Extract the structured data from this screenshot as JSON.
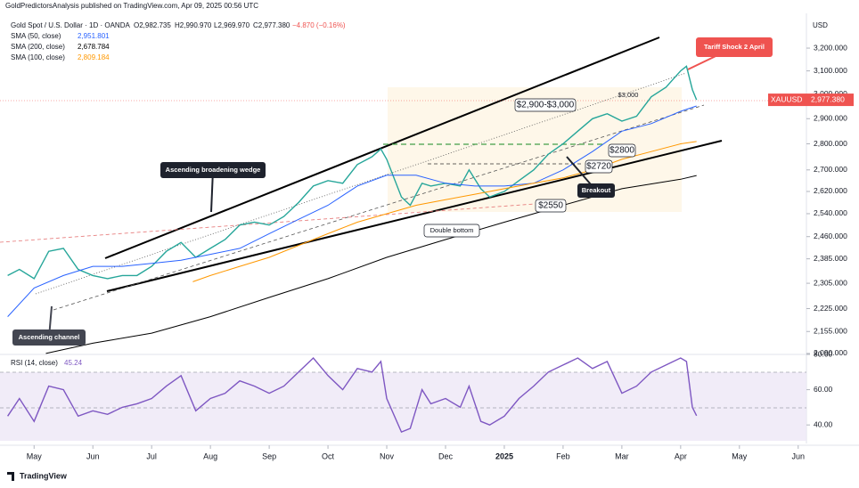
{
  "header": {
    "publisher": "GoldPredictorsAnalysis published on TradingView.com, Apr 09, 2025 00:56 UTC",
    "symbol": "Gold Spot / U.S. Dollar · 1D · OANDA",
    "open": "O2,982.735",
    "high": "H2,990.970",
    "low": "L2,969.970",
    "close": "C2,977.380",
    "change": "−4.870 (−0.16%)"
  },
  "chart_data": [
    {
      "type": "line",
      "log_scale": true,
      "axis_title": "USD",
      "xlim": [
        4.42,
        18.14
      ],
      "ylim": [
        2082,
        3359
      ],
      "xticks": [
        {
          "value": 5,
          "label": "May"
        },
        {
          "value": 6,
          "label": "Jun"
        },
        {
          "value": 7,
          "label": "Jul"
        },
        {
          "value": 8,
          "label": "Aug"
        },
        {
          "value": 9,
          "label": "Sep"
        },
        {
          "value": 10,
          "label": "Oct"
        },
        {
          "value": 11,
          "label": "Nov"
        },
        {
          "value": 12,
          "label": "Dec"
        },
        {
          "value": 13,
          "label": "2025"
        },
        {
          "value": 14,
          "label": "Feb"
        },
        {
          "value": 15,
          "label": "Mar"
        },
        {
          "value": 16,
          "label": "Apr"
        },
        {
          "value": 17,
          "label": "May"
        },
        {
          "value": 18,
          "label": "Jun"
        }
      ],
      "yticks": [
        {
          "value": 3200,
          "label": "3,200.000"
        },
        {
          "value": 3100,
          "label": "3,100.000"
        },
        {
          "value": 3000,
          "label": "3,000.000"
        },
        {
          "value": 2900,
          "label": "2,900.000"
        },
        {
          "value": 2800,
          "label": "2,800.000"
        },
        {
          "value": 2700,
          "label": "2,700.000"
        },
        {
          "value": 2620,
          "label": "2,620.000"
        },
        {
          "value": 2540,
          "label": "2,540.000"
        },
        {
          "value": 2460,
          "label": "2,460.000"
        },
        {
          "value": 2385,
          "label": "2,385.000"
        },
        {
          "value": 2305,
          "label": "2,305.000"
        },
        {
          "value": 2225,
          "label": "2,225.000"
        },
        {
          "value": 2155,
          "label": "2,155.000"
        },
        {
          "value": 2090,
          "label": "2,090.000"
        }
      ],
      "series": [
        {
          "name": "XAUUSD",
          "color": "#26a69a",
          "last_label": "2,977.380",
          "x": [
            4.55,
            4.75,
            5,
            5.25,
            5.5,
            5.75,
            6,
            6.25,
            6.5,
            6.75,
            7,
            7.25,
            7.5,
            7.75,
            8,
            8.25,
            8.5,
            8.75,
            9,
            9.25,
            9.5,
            9.75,
            10,
            10.25,
            10.5,
            10.75,
            10.9,
            11,
            11.25,
            11.4,
            11.6,
            11.75,
            12,
            12.25,
            12.4,
            12.6,
            12.75,
            13,
            13.25,
            13.5,
            13.75,
            14,
            14.25,
            14.5,
            14.75,
            15,
            15.25,
            15.5,
            15.75,
            16,
            16.1,
            16.2,
            16.27
          ],
          "values": [
            2330,
            2350,
            2320,
            2410,
            2420,
            2350,
            2330,
            2320,
            2330,
            2330,
            2360,
            2410,
            2440,
            2390,
            2420,
            2450,
            2500,
            2510,
            2500,
            2530,
            2580,
            2640,
            2660,
            2650,
            2720,
            2750,
            2780,
            2740,
            2600,
            2570,
            2650,
            2640,
            2650,
            2640,
            2700,
            2630,
            2600,
            2620,
            2660,
            2700,
            2760,
            2800,
            2850,
            2900,
            2920,
            2890,
            2910,
            2990,
            3030,
            3100,
            3120,
            3020,
            2977.38
          ]
        },
        {
          "name": "SMA (50, close)",
          "color": "#2962ff",
          "last_label": "2,951.801",
          "x": [
            4.55,
            5,
            5.5,
            6,
            6.5,
            7,
            7.5,
            8,
            8.5,
            9,
            9.5,
            10,
            10.5,
            11,
            11.5,
            12,
            12.5,
            13,
            13.5,
            14,
            14.5,
            15,
            15.5,
            16,
            16.27
          ],
          "values": [
            2200,
            2290,
            2330,
            2360,
            2360,
            2370,
            2380,
            2400,
            2420,
            2470,
            2520,
            2570,
            2640,
            2680,
            2680,
            2650,
            2640,
            2640,
            2650,
            2700,
            2770,
            2850,
            2880,
            2930,
            2951.801
          ]
        },
        {
          "name": "SMA (200, close)",
          "color": "#000000",
          "last_label": "2,678.784",
          "x": [
            5.2,
            6,
            7,
            8,
            9,
            10,
            11,
            12,
            13,
            14,
            15,
            16,
            16.27
          ],
          "values": [
            2090,
            2120,
            2150,
            2200,
            2260,
            2320,
            2390,
            2450,
            2510,
            2570,
            2630,
            2665,
            2678.784
          ]
        },
        {
          "name": "SMA (100, close)",
          "color": "#ff9800",
          "last_label": "2,809.184",
          "x": [
            7.7,
            8,
            8.5,
            9,
            9.5,
            10,
            10.5,
            11,
            11.5,
            12,
            12.5,
            13,
            13.5,
            14,
            14.5,
            15,
            15.5,
            16,
            16.27
          ],
          "values": [
            2310,
            2330,
            2360,
            2390,
            2430,
            2470,
            2510,
            2540,
            2570,
            2590,
            2610,
            2630,
            2650,
            2670,
            2700,
            2740,
            2770,
            2800,
            2809.184
          ]
        }
      ],
      "annotations": [
        "Ascending broadening wedge",
        "Ascending channel",
        "Double bottom",
        "Breakout",
        "Tariff Shock 2 April",
        "$2,900-$3,000",
        "$3,000",
        "$2800",
        "$2720",
        "$2550"
      ]
    },
    {
      "type": "line",
      "log_scale": false,
      "xlim": [
        4.42,
        18.14
      ],
      "ylim": [
        31,
        80
      ],
      "yticks": [
        {
          "value": 80,
          "label": "80.00"
        },
        {
          "value": 60,
          "label": "60.00"
        },
        {
          "value": 40,
          "label": "40.00"
        }
      ],
      "series": [
        {
          "name": "RSI (14, close)",
          "color": "#7e57c2",
          "last_label": "45.24",
          "x": [
            4.55,
            4.75,
            5,
            5.25,
            5.5,
            5.75,
            6,
            6.25,
            6.5,
            6.75,
            7,
            7.25,
            7.5,
            7.75,
            8,
            8.25,
            8.5,
            8.75,
            9,
            9.25,
            9.5,
            9.75,
            10,
            10.25,
            10.5,
            10.75,
            10.9,
            11,
            11.25,
            11.4,
            11.6,
            11.75,
            12,
            12.25,
            12.4,
            12.6,
            12.75,
            13,
            13.25,
            13.5,
            13.75,
            14,
            14.25,
            14.5,
            14.75,
            15,
            15.25,
            15.5,
            15.75,
            16,
            16.1,
            16.2,
            16.27
          ],
          "values": [
            45,
            55,
            42,
            62,
            60,
            45,
            48,
            46,
            50,
            52,
            55,
            62,
            68,
            48,
            55,
            58,
            65,
            62,
            58,
            62,
            70,
            78,
            68,
            60,
            72,
            70,
            76,
            55,
            36,
            38,
            60,
            52,
            55,
            50,
            62,
            42,
            40,
            45,
            55,
            62,
            70,
            74,
            78,
            72,
            76,
            58,
            62,
            70,
            74,
            78,
            76,
            50,
            45.24
          ]
        }
      ]
    }
  ],
  "footer": "TradingView"
}
